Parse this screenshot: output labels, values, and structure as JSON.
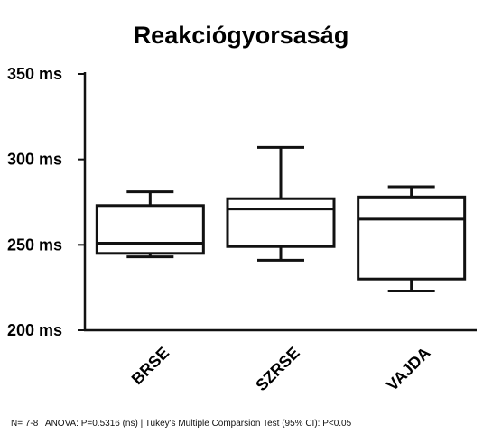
{
  "chart_data": {
    "type": "box",
    "title": "Reakciógyorsaság",
    "xlabel": "",
    "ylabel": "",
    "ylim": [
      200,
      350
    ],
    "y_ticks": [
      200,
      250,
      300,
      350
    ],
    "y_tick_labels": [
      "200 ms",
      "250 ms",
      "300 ms",
      "350 ms"
    ],
    "categories": [
      "BRSE",
      "SZRSE",
      "VAJDA"
    ],
    "boxes": [
      {
        "category": "BRSE",
        "min": 243,
        "q1": 245,
        "median": 251,
        "q3": 273,
        "max": 281
      },
      {
        "category": "SZRSE",
        "min": 241,
        "q1": 249,
        "median": 271,
        "q3": 277,
        "max": 307
      },
      {
        "category": "VAJDA",
        "min": 223,
        "q1": 230,
        "median": 265,
        "q3": 278,
        "max": 284
      }
    ],
    "grid": false,
    "legend": "none"
  },
  "footnote": "N= 7-8 | ANOVA: P=0.5316 (ns) | Tukey's Multiple Comparsion Test (95% CI): P<0.05"
}
